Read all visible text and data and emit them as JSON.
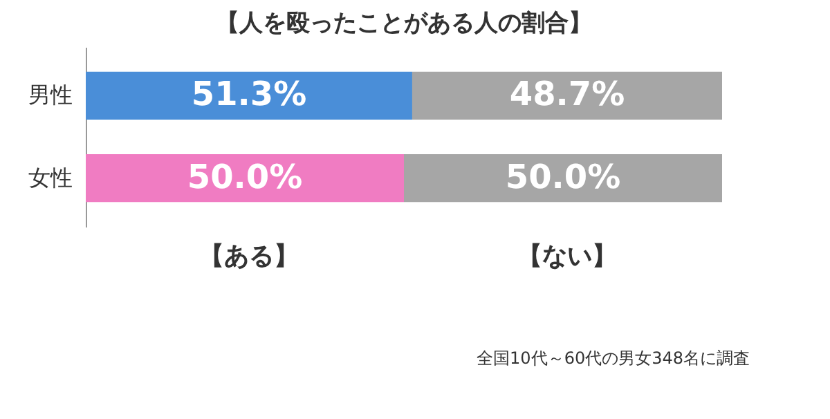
{
  "chart_data": {
    "type": "bar",
    "title": "【人を殴ったことがある人の割合】",
    "orientation": "horizontal",
    "stacked": true,
    "categories": [
      "男性",
      "女性"
    ],
    "series": [
      {
        "name": "【ある】",
        "colors": [
          "#4a8ed8",
          "#f07cc2"
        ],
        "values": [
          51.3,
          50.0
        ],
        "value_labels": [
          "51.3%",
          "50.0%"
        ]
      },
      {
        "name": "【ない】",
        "color": "#a6a6a6",
        "values": [
          48.7,
          50.0
        ],
        "value_labels": [
          "48.7%",
          "50.0%"
        ]
      }
    ],
    "annotations": [
      "全国10代～60代の男女348名に調査"
    ],
    "legend": "bottom"
  }
}
